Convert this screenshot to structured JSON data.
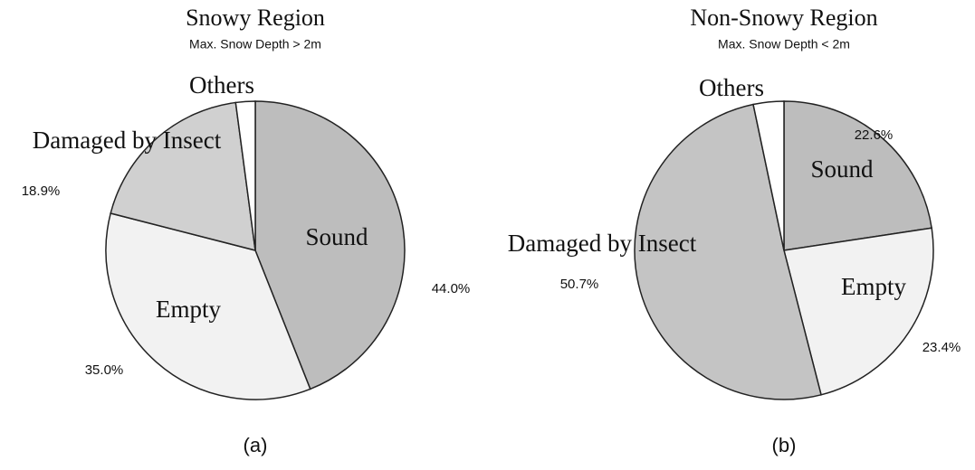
{
  "chart_data": [
    {
      "type": "pie",
      "title": "Snowy Region",
      "subtitle": "Max.  Snow Depth > 2m",
      "caption": "(a)",
      "categories": [
        "Sound",
        "Empty",
        "Damaged by Insect",
        "Others"
      ],
      "values": [
        44.0,
        35.0,
        18.9,
        2.1
      ],
      "value_labels": [
        "44.0%",
        "35.0%",
        "18.9%",
        null
      ],
      "colors": [
        "#bdbdbd",
        "#f2f2f2",
        "#d0d0d0",
        "#ffffff"
      ]
    },
    {
      "type": "pie",
      "title": "Non-Snowy Region",
      "subtitle": "Max.  Snow Depth < 2m",
      "caption": "(b)",
      "categories": [
        "Sound",
        "Empty",
        "Damaged by Insect",
        "Others"
      ],
      "values": [
        22.6,
        23.4,
        50.7,
        3.3
      ],
      "value_labels": [
        "22.6%",
        "23.4%",
        "50.7%",
        null
      ],
      "colors": [
        "#bdbdbd",
        "#f2f2f2",
        "#c4c4c4",
        "#ffffff"
      ]
    }
  ]
}
